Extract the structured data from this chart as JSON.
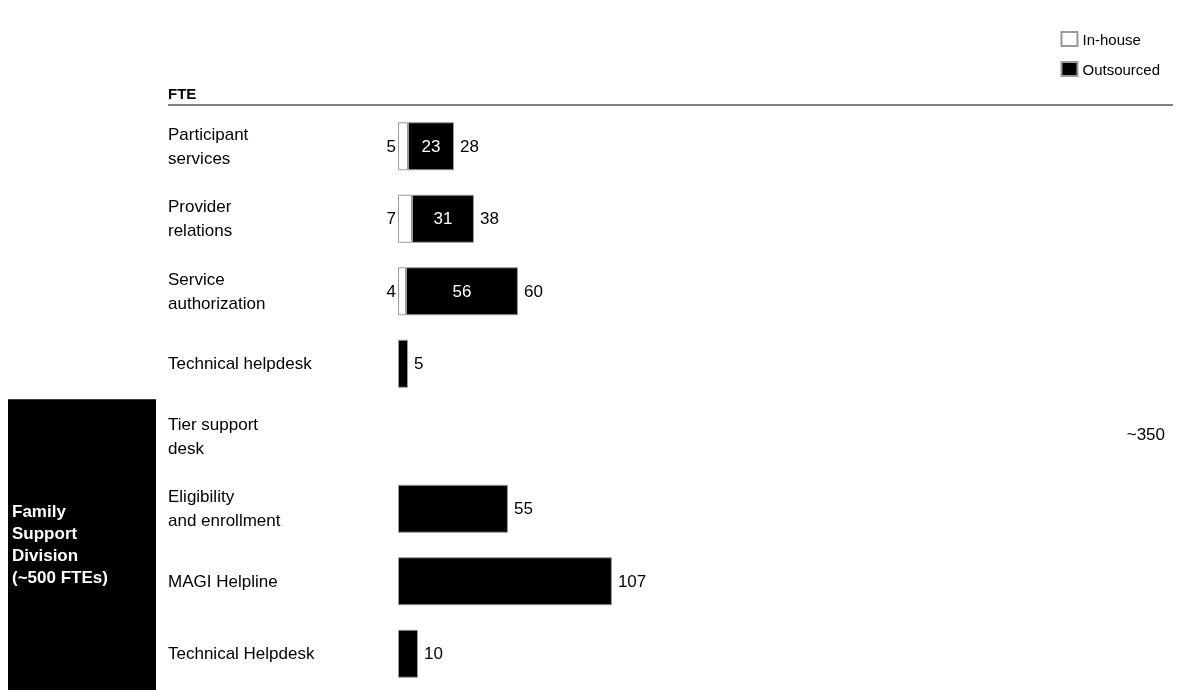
{
  "chart_data": {
    "type": "bar",
    "orientation": "horizontal",
    "stacked": true,
    "xlabel": "FTE",
    "categories": [
      "Participant\nservices",
      "Provider\nrelations",
      "Service\nauthorization",
      "Technical helpdesk",
      "Tier support\ndesk",
      "Eligibility\nand enrollment",
      "MAGI Helpline",
      "Technical Helpdesk"
    ],
    "series": [
      {
        "name": "In-house",
        "color": "#ffffff",
        "values": [
          5,
          7,
          4,
          null,
          null,
          null,
          null,
          null
        ],
        "value_labels": [
          "5",
          "7",
          "4",
          null,
          null,
          null,
          null,
          null
        ]
      },
      {
        "name": "Outsourced",
        "color": "#000000",
        "values": [
          23,
          31,
          56,
          5,
          null,
          55,
          107,
          10
        ],
        "value_labels": [
          "23",
          "31",
          "56",
          null,
          null,
          null,
          null,
          null
        ]
      }
    ],
    "totals": [
      "28",
      "38",
      "60",
      "5",
      null,
      "55",
      "107",
      "10"
    ],
    "annotations": [
      "~350",
      "Family\nSupport\nDivision\n(~500 FTEs)"
    ],
    "legend": "top right"
  }
}
